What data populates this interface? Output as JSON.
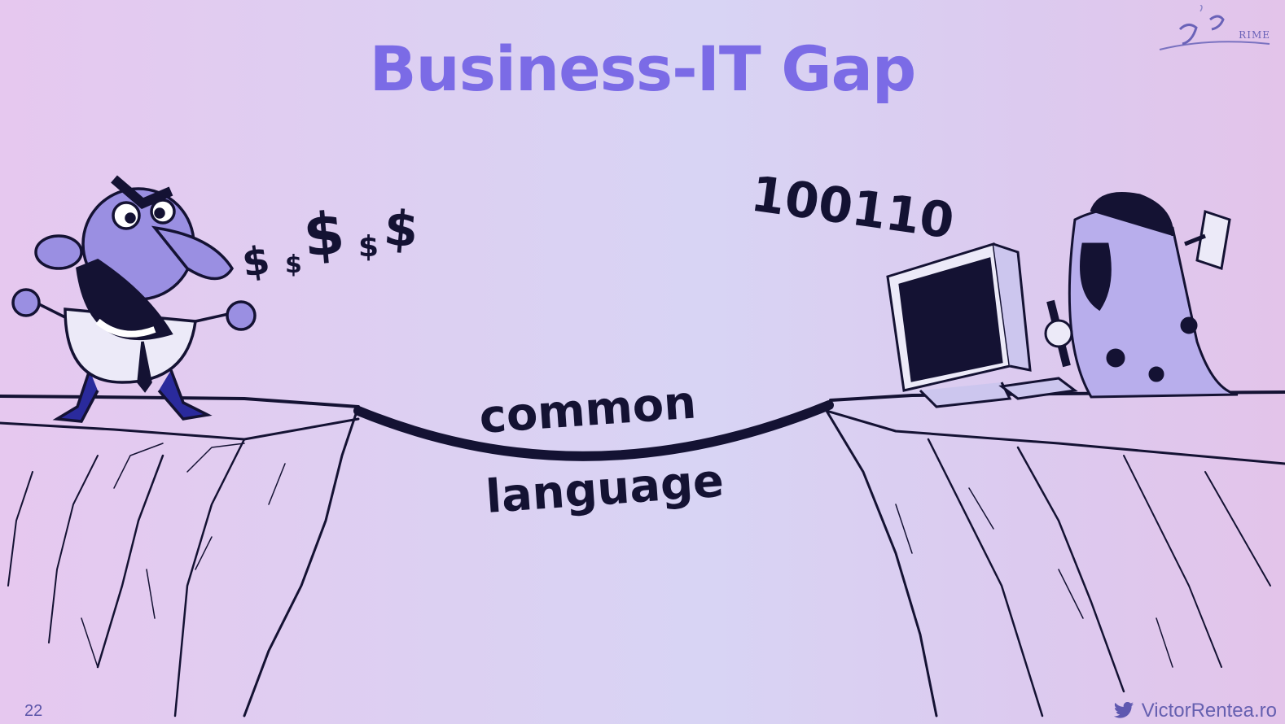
{
  "slide": {
    "title": "Business-IT Gap",
    "page_number": "22",
    "handle": "VictorRentea.ro",
    "logo_text": "RIME",
    "bridge_label_top": "common",
    "bridge_label_bottom": "language",
    "money_symbols": [
      "$",
      "$",
      "$",
      "$",
      "$"
    ],
    "binary_text": "100110"
  },
  "colors": {
    "title": "#7b6be6",
    "ink": "#141233",
    "background": "#dcd0f2"
  },
  "icons": {
    "logo": "j-prime-logo",
    "twitter": "twitter-bird-icon"
  }
}
